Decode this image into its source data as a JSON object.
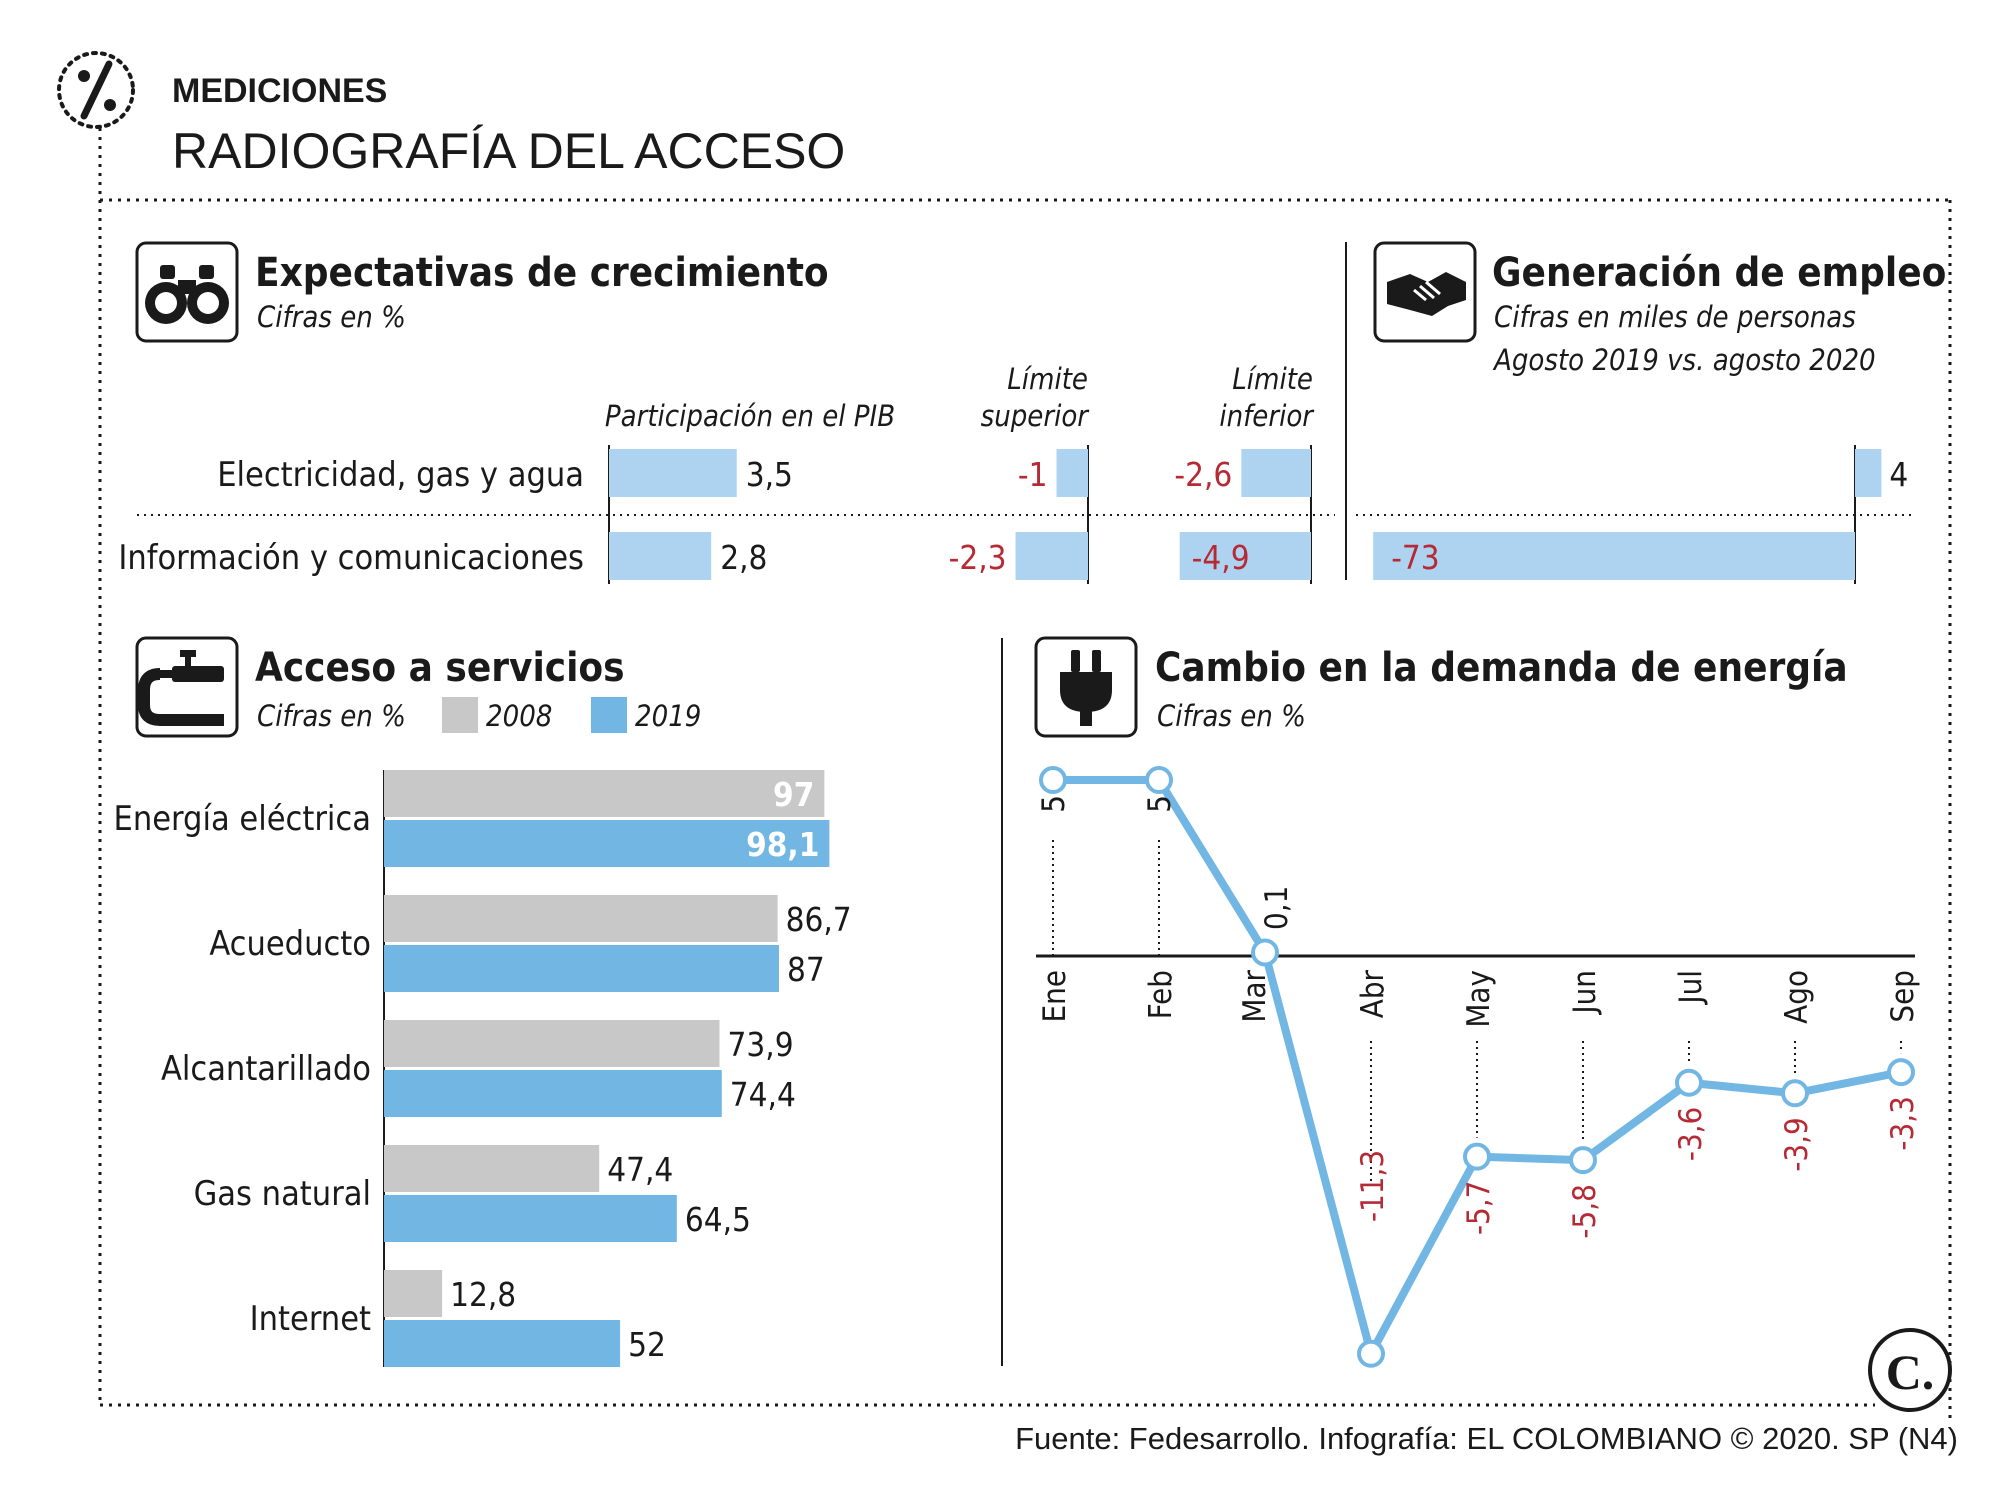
{
  "header": {
    "kicker": "MEDICIONES",
    "title": "RADIOGRAFÍA DEL ACCESO",
    "icon": "percent-icon"
  },
  "colors": {
    "light_blue": "#aed3f1",
    "blue": "#72b6e4",
    "gray": "#c8c8c8",
    "red": "#b52a35",
    "text": "#1a1a1a"
  },
  "chart_data": [
    {
      "id": "expectativas",
      "type": "bar",
      "title": "Expectativas de crecimiento",
      "subtitle": "Cifras en %",
      "icon": "binoculars-icon",
      "columns": [
        "Participación en el PIB",
        "Límite superior",
        "Límite inferior"
      ],
      "column_header_lines": [
        [
          "Participación en el PIB"
        ],
        [
          "Límite",
          "superior"
        ],
        [
          "Límite",
          "inferior"
        ]
      ],
      "categories": [
        "Electricidad, gas y agua",
        "Información y comunicaciones"
      ],
      "series": [
        {
          "name": "Participación en el PIB",
          "values": [
            3.5,
            2.8
          ],
          "labels": [
            "3,5",
            "2,8"
          ]
        },
        {
          "name": "Límite superior",
          "values": [
            -1,
            -2.3
          ],
          "labels": [
            "-1",
            "-2,3"
          ]
        },
        {
          "name": "Límite inferior",
          "values": [
            -2.6,
            -4.9
          ],
          "labels": [
            "-2,6",
            "-4,9"
          ]
        }
      ]
    },
    {
      "id": "empleo",
      "type": "bar",
      "title": "Generación de empleo",
      "subtitle_lines": [
        "Cifras en miles de personas",
        "Agosto 2019 vs. agosto 2020"
      ],
      "icon": "handshake-icon",
      "categories": [
        "Electricidad, gas y agua",
        "Información y comunicaciones"
      ],
      "values": [
        4,
        -73
      ],
      "labels": [
        "4",
        "-73"
      ]
    },
    {
      "id": "servicios",
      "type": "bar",
      "orientation": "horizontal",
      "title": "Acceso a servicios",
      "subtitle": "Cifras en %",
      "icon": "faucet-icon",
      "categories": [
        "Energía eléctrica",
        "Acueducto",
        "Alcantarillado",
        "Gas natural",
        "Internet"
      ],
      "series": [
        {
          "name": "2008",
          "values": [
            97,
            86.7,
            73.9,
            47.4,
            12.8
          ],
          "labels": [
            "97",
            "86,7",
            "73,9",
            "47,4",
            "12,8"
          ]
        },
        {
          "name": "2019",
          "values": [
            98.1,
            87,
            74.4,
            64.5,
            52
          ],
          "labels": [
            "98,1",
            "87",
            "74,4",
            "64,5",
            "52"
          ]
        }
      ],
      "xlim": [
        0,
        100
      ]
    },
    {
      "id": "energia",
      "type": "line",
      "title": "Cambio en la demanda de energía",
      "subtitle": "Cifras en %",
      "icon": "plug-icon",
      "x": [
        "Ene",
        "Feb",
        "Mar",
        "Abr",
        "May",
        "Jun",
        "Jul",
        "Ago",
        "Sep"
      ],
      "values": [
        5,
        5,
        0.1,
        -11.3,
        -5.7,
        -5.8,
        -3.6,
        -3.9,
        -3.3
      ],
      "labels": [
        "5",
        "5",
        "0,1",
        "-11,3",
        "-5,7",
        "-5,8",
        "-3,6",
        "-3,9",
        "-3,3"
      ],
      "ylim": [
        -12,
        6
      ]
    }
  ],
  "footer": {
    "source": "Fuente: Fedesarrollo. Infografía: EL COLOMBIANO © 2020. SP (N4)",
    "logo": "C."
  }
}
